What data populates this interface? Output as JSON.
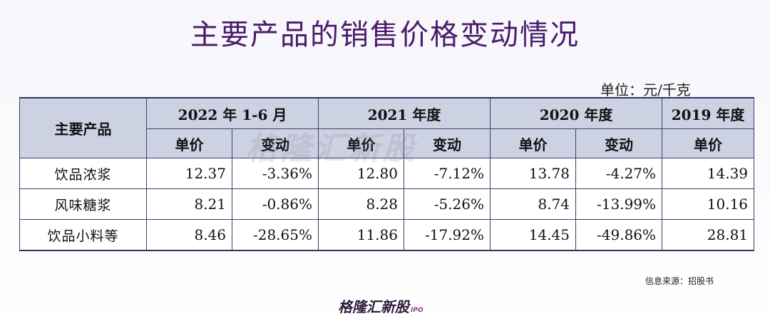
{
  "title": "主要产品的销售价格变动情况",
  "unit_label": "单位：元/千克",
  "table": {
    "product_header": "主要产品",
    "periods": [
      "2022 年 1-6 月",
      "2021 年度",
      "2020 年度",
      "2019 年度"
    ],
    "sub_headers": {
      "price": "单价",
      "change": "变动"
    },
    "rows": [
      {
        "name": "饮品浓浆",
        "cells": [
          "12.37",
          "-3.36%",
          "12.80",
          "-7.12%",
          "13.78",
          "-4.27%",
          "14.39"
        ]
      },
      {
        "name": "风味糖浆",
        "cells": [
          "8.21",
          "-0.86%",
          "8.28",
          "-5.26%",
          "8.74",
          "-13.99%",
          "10.16"
        ]
      },
      {
        "name": "饮品小料等",
        "cells": [
          "8.46",
          "-28.65%",
          "11.86",
          "-17.92%",
          "14.45",
          "-49.86%",
          "28.81"
        ]
      }
    ]
  },
  "watermark": "格隆汇新股",
  "source": "信息来源：招股书",
  "logo": {
    "text": "格隆汇新股",
    "suffix": "IPO"
  },
  "colors": {
    "title": "#4a1c6b",
    "header_bg": "#cdd2e3",
    "border": "#3a3f6a"
  }
}
